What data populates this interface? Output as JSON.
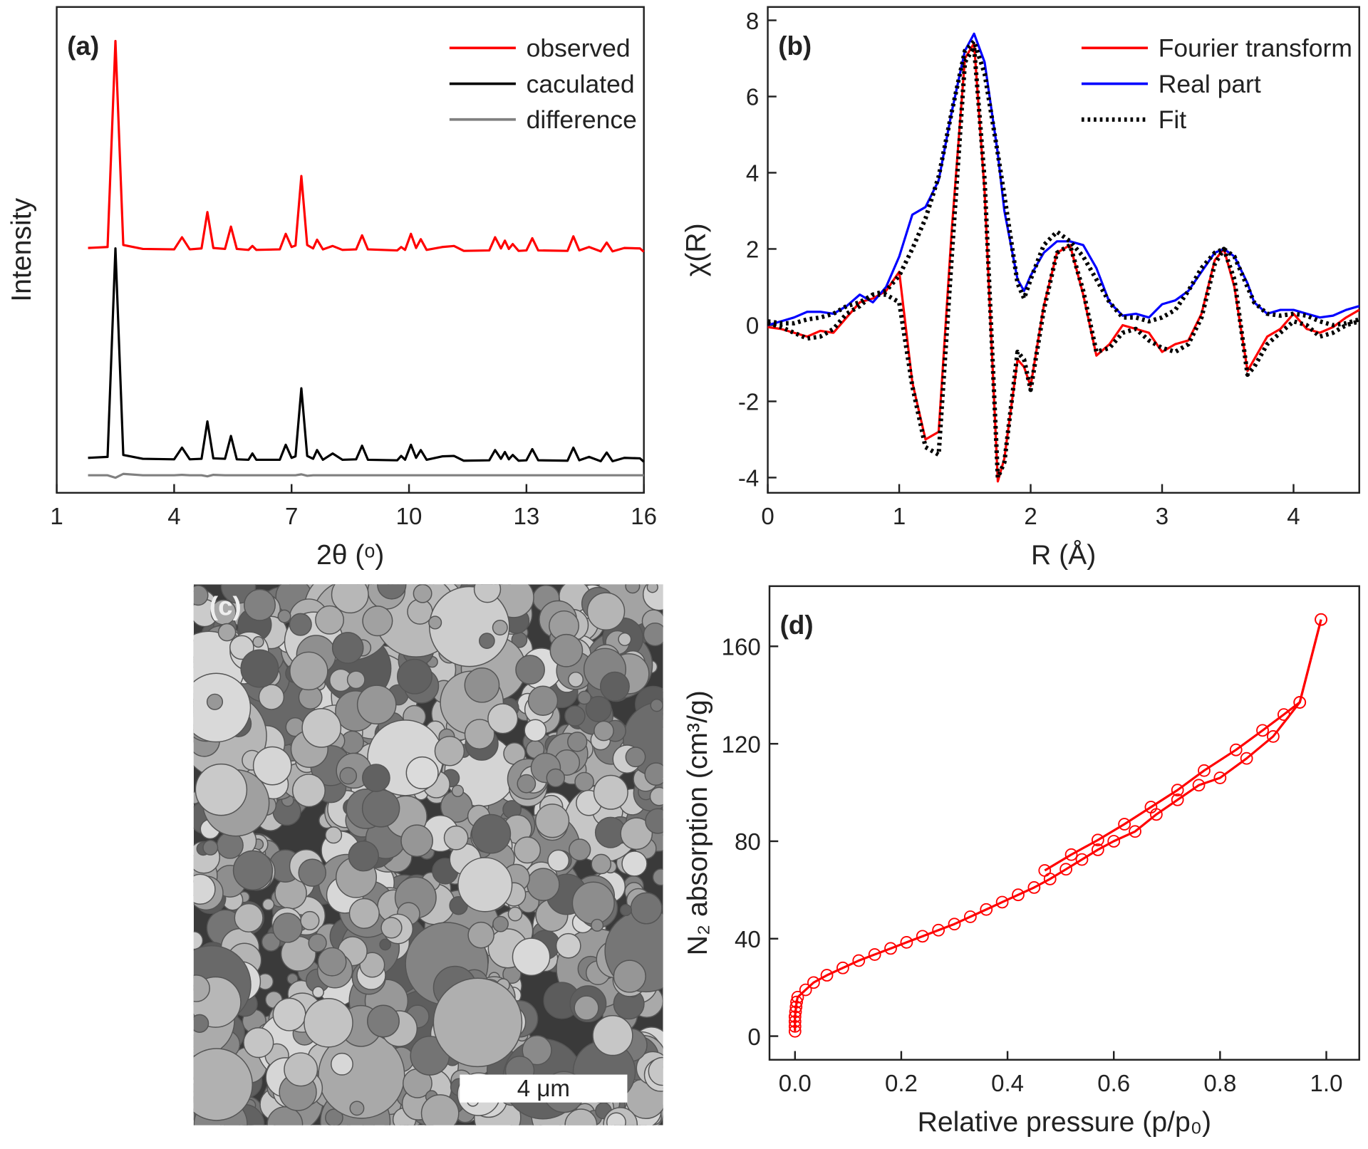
{
  "chart_data": [
    {
      "type": "line",
      "title": "(a)",
      "x_label": "2θ (ᵒ)",
      "y_label": "Intensity",
      "legend": "upper right",
      "xlim": [
        1,
        16
      ],
      "xticks": [
        1,
        4,
        7,
        10,
        13,
        16
      ],
      "ylim": [
        0,
        100
      ],
      "x": [
        1.8,
        2.3,
        2.5,
        2.7,
        3.2,
        4.0,
        4.2,
        4.4,
        4.7,
        4.85,
        5.0,
        5.3,
        5.45,
        5.6,
        5.9,
        6.0,
        6.1,
        6.7,
        6.85,
        7.0,
        7.1,
        7.25,
        7.4,
        7.55,
        7.65,
        7.8,
        8.05,
        8.3,
        8.65,
        8.8,
        8.95,
        9.7,
        9.8,
        9.9,
        10.05,
        10.18,
        10.3,
        10.45,
        10.85,
        11.15,
        11.4,
        12.05,
        12.2,
        12.35,
        12.45,
        12.55,
        12.65,
        12.8,
        13.0,
        13.15,
        13.3,
        14.05,
        14.2,
        14.35,
        14.6,
        14.9,
        15.05,
        15.2,
        15.5,
        15.9,
        16.0
      ],
      "series": [
        {
          "name": "observed",
          "color": "#ff0000",
          "style": "solid",
          "values": [
            50.4,
            50.6,
            93.0,
            51.0,
            50.2,
            50.1,
            52.6,
            50.1,
            50.3,
            57.8,
            50.4,
            50.2,
            54.8,
            50.2,
            50.0,
            50.8,
            50.0,
            50.1,
            53.3,
            50.6,
            50.9,
            65.2,
            51.0,
            50.3,
            52.1,
            50.1,
            50.8,
            50.0,
            50.1,
            53.0,
            50.1,
            49.9,
            50.6,
            50.0,
            53.3,
            50.4,
            52.2,
            50.0,
            50.6,
            50.8,
            49.8,
            49.9,
            52.6,
            50.3,
            51.9,
            50.2,
            51.2,
            49.8,
            49.9,
            52.4,
            49.9,
            49.8,
            52.8,
            49.9,
            50.6,
            49.7,
            51.5,
            49.7,
            50.4,
            50.3,
            49.6
          ]
        },
        {
          "name": "caculated",
          "color": "#000000",
          "style": "solid",
          "values": [
            7.2,
            7.4,
            50.3,
            7.8,
            7.0,
            6.9,
            9.3,
            6.9,
            7.0,
            14.7,
            7.1,
            7.0,
            11.7,
            6.9,
            6.8,
            8.1,
            6.8,
            6.8,
            9.9,
            7.2,
            7.5,
            21.5,
            7.6,
            7.0,
            8.8,
            6.8,
            8.1,
            6.8,
            6.9,
            9.7,
            6.8,
            6.7,
            7.6,
            6.8,
            9.9,
            7.2,
            8.8,
            6.8,
            7.5,
            7.6,
            6.6,
            6.7,
            8.8,
            7.0,
            8.4,
            6.9,
            7.8,
            6.6,
            6.7,
            9.0,
            6.7,
            6.6,
            9.3,
            6.7,
            7.4,
            6.5,
            8.3,
            6.5,
            7.2,
            7.1,
            6.4
          ]
        },
        {
          "name": "difference",
          "color": "#808080",
          "style": "solid",
          "values": [
            3.6,
            3.6,
            3.1,
            3.9,
            3.6,
            3.6,
            3.7,
            3.6,
            3.6,
            3.4,
            3.7,
            3.6,
            3.6,
            3.6,
            3.6,
            3.6,
            3.6,
            3.6,
            3.6,
            3.6,
            3.6,
            3.8,
            3.5,
            3.6,
            3.6,
            3.6,
            3.6,
            3.6,
            3.6,
            3.6,
            3.6,
            3.6,
            3.6,
            3.6,
            3.6,
            3.6,
            3.6,
            3.6,
            3.6,
            3.6,
            3.6,
            3.6,
            3.6,
            3.6,
            3.6,
            3.6,
            3.6,
            3.6,
            3.6,
            3.6,
            3.6,
            3.6,
            3.6,
            3.6,
            3.6,
            3.6,
            3.6,
            3.6,
            3.6,
            3.6,
            3.6
          ]
        }
      ]
    },
    {
      "type": "line",
      "title": "(b)",
      "x_label": "R (Å)",
      "y_label": "χ(R)",
      "legend": "upper right",
      "xlim": [
        0,
        4.5
      ],
      "xticks": [
        0,
        1,
        2,
        3,
        4
      ],
      "ylim": [
        -4.4,
        8.35
      ],
      "yticks": [
        -4,
        -2,
        0,
        2,
        4,
        6,
        8
      ],
      "x": [
        0,
        0.1,
        0.2,
        0.3,
        0.4,
        0.5,
        0.6,
        0.7,
        0.8,
        0.9,
        1.0,
        1.1,
        1.2,
        1.3,
        1.4,
        1.5,
        1.57,
        1.65,
        1.75,
        1.8,
        1.9,
        1.95,
        2.0,
        2.1,
        2.2,
        2.3,
        2.4,
        2.5,
        2.6,
        2.7,
        2.8,
        2.9,
        3.0,
        3.1,
        3.2,
        3.3,
        3.4,
        3.47,
        3.55,
        3.65,
        3.7,
        3.8,
        3.9,
        4.0,
        4.1,
        4.2,
        4.3,
        4.4,
        4.5
      ],
      "series": [
        {
          "name": "Fourier transform",
          "color": "#ff0000",
          "style": "solid",
          "values": [
            -0.05,
            -0.1,
            -0.2,
            -0.3,
            -0.15,
            -0.2,
            0.2,
            0.6,
            0.7,
            0.9,
            1.4,
            -1.5,
            -3.0,
            -2.8,
            2.5,
            7.0,
            7.4,
            3.5,
            -4.1,
            -3.5,
            -0.9,
            -1.1,
            -1.6,
            0.5,
            1.9,
            2.1,
            0.8,
            -0.8,
            -0.5,
            0.0,
            -0.1,
            -0.2,
            -0.7,
            -0.5,
            -0.4,
            0.3,
            1.7,
            2.0,
            1.0,
            -1.2,
            -0.9,
            -0.3,
            -0.1,
            0.3,
            -0.1,
            -0.2,
            -0.05,
            0.2,
            0.4
          ]
        },
        {
          "name": "Real part",
          "color": "#0000ff",
          "style": "solid",
          "values": [
            0.0,
            0.1,
            0.2,
            0.35,
            0.35,
            0.3,
            0.5,
            0.8,
            0.6,
            1.0,
            1.8,
            2.9,
            3.1,
            3.8,
            5.6,
            7.2,
            7.65,
            6.9,
            4.5,
            3.0,
            1.2,
            0.9,
            1.3,
            1.9,
            2.2,
            2.2,
            2.1,
            1.5,
            0.6,
            0.25,
            0.3,
            0.2,
            0.55,
            0.65,
            0.9,
            1.4,
            1.9,
            2.0,
            1.8,
            1.1,
            0.6,
            0.3,
            0.4,
            0.4,
            0.3,
            0.2,
            0.25,
            0.4,
            0.5
          ]
        },
        {
          "name": "Fit",
          "color": "#000000",
          "style": "dotted",
          "values": [
            0.1,
            0.05,
            0.05,
            0.15,
            0.2,
            0.3,
            0.5,
            0.6,
            0.8,
            0.9,
            1.3,
            2.0,
            2.8,
            3.9,
            5.6,
            7.2,
            7.45,
            6.6,
            4.5,
            3.4,
            1.1,
            0.7,
            1.2,
            2.1,
            2.45,
            2.2,
            1.8,
            1.2,
            0.6,
            0.2,
            0.2,
            0.1,
            0.2,
            0.4,
            0.9,
            1.5,
            1.9,
            2.0,
            1.8,
            1.0,
            0.6,
            0.3,
            0.25,
            0.3,
            0.25,
            0.1,
            0.0,
            0.05,
            0.15
          ]
        },
        {
          "name": null,
          "color": "#000000",
          "style": "dotted",
          "values": [
            0.05,
            -0.05,
            -0.2,
            -0.35,
            -0.3,
            -0.1,
            0.3,
            0.5,
            0.8,
            0.8,
            0.6,
            -1.6,
            -3.2,
            -3.4,
            1.8,
            6.9,
            7.3,
            3.8,
            -4.0,
            -3.6,
            -0.7,
            -0.9,
            -1.7,
            0.4,
            1.9,
            2.1,
            0.9,
            -0.7,
            -0.6,
            -0.2,
            -0.1,
            -0.4,
            -0.6,
            -0.7,
            -0.5,
            0.2,
            1.6,
            2.0,
            1.2,
            -1.3,
            -1.1,
            -0.5,
            -0.2,
            0.1,
            0.0,
            -0.3,
            -0.2,
            0.0,
            0.1
          ]
        }
      ]
    },
    {
      "type": "image",
      "title": "(c)",
      "scale_bar_label": "4 μm"
    },
    {
      "type": "scatter",
      "title": "(d)",
      "x_label": "Relative pressure (p/p₀)",
      "y_label": "N₂ absorption (cm³/g)",
      "connect": true,
      "xlim": [
        -0.048,
        1.062
      ],
      "xticks": [
        {
          "value": 0,
          "label": "0.0"
        },
        0.2,
        0.4,
        0.6,
        0.8,
        {
          "value": 1,
          "label": "1.0"
        }
      ],
      "ylim": [
        -9.7,
        184.7
      ],
      "yticks": [
        0,
        40,
        80,
        120,
        160
      ],
      "series": [
        {
          "color": "#ff0000",
          "x": [
            0,
            0,
            0,
            0,
            0.001,
            0.002,
            0.003,
            0.005,
            0.02,
            0.035,
            0.06,
            0.09,
            0.12,
            0.15,
            0.18,
            0.21,
            0.24,
            0.27,
            0.3,
            0.33,
            0.36,
            0.39,
            0.42,
            0.45,
            0.48,
            0.51,
            0.54,
            0.57,
            0.6,
            0.64,
            0.68,
            0.72,
            0.76,
            0.8,
            0.85,
            0.9,
            0.95,
            0.99
          ],
          "values": [
            2,
            4,
            6,
            8,
            10,
            12,
            14,
            16,
            19,
            22,
            25,
            28,
            31,
            33.5,
            36,
            38.5,
            41,
            43.5,
            46,
            49,
            52,
            55,
            58,
            61,
            64.5,
            68.5,
            72.5,
            76.5,
            80,
            84,
            91,
            97,
            103,
            106,
            114,
            123,
            137,
            171
          ]
        },
        {
          "color": "#ff0000",
          "x": [
            0.99,
            0.95,
            0.92,
            0.88,
            0.83,
            0.77,
            0.72,
            0.67,
            0.62,
            0.57,
            0.52,
            0.47
          ],
          "values": [
            171,
            137,
            132,
            125.5,
            117.5,
            109,
            101,
            94,
            87,
            80.5,
            74.5,
            68
          ]
        }
      ]
    }
  ]
}
